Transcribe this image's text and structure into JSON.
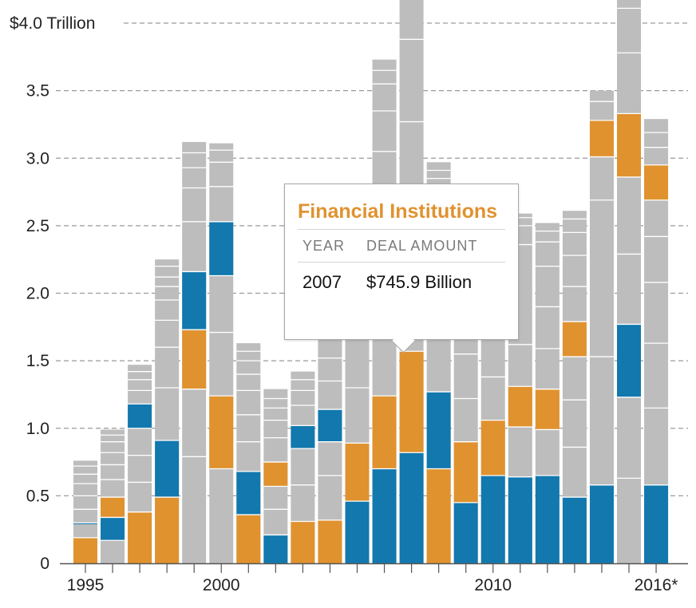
{
  "chart_data": {
    "type": "bar",
    "stacked": true,
    "y_axis": {
      "min": 0,
      "max": 4.0,
      "ticks": [
        {
          "value": 0,
          "label": "0"
        },
        {
          "value": 0.5,
          "label": "0.5"
        },
        {
          "value": 1.0,
          "label": "1.0"
        },
        {
          "value": 1.5,
          "label": "1.5"
        },
        {
          "value": 2.0,
          "label": "2.0"
        },
        {
          "value": 2.5,
          "label": "2.5"
        },
        {
          "value": 3.0,
          "label": "3.0"
        },
        {
          "value": 3.5,
          "label": "3.5"
        },
        {
          "value": 4.0,
          "label": "$4.0 Trillion"
        }
      ],
      "grid": true,
      "grid_style": "dashed"
    },
    "x_labels": [
      {
        "year": 1995,
        "label": "1995"
      },
      {
        "year": 2000,
        "label": "2000"
      },
      {
        "year": 2010,
        "label": "2010"
      },
      {
        "year": 2016,
        "label": "2016*"
      }
    ],
    "highlight_colors": {
      "blue": "#1278ae",
      "orange": "#e0922f"
    },
    "base_color": "#bdbdbd",
    "years": [
      {
        "year": 1995,
        "total": 0.76,
        "highlights": [
          {
            "from": 0.0,
            "to": 0.19,
            "color": "orange"
          },
          {
            "from": 0.29,
            "to": 0.3,
            "color": "blue"
          }
        ],
        "dividers": [
          0.19,
          0.3,
          0.4,
          0.5,
          0.59,
          0.66,
          0.72
        ]
      },
      {
        "year": 1996,
        "total": 0.99,
        "highlights": [
          {
            "from": 0.17,
            "to": 0.34,
            "color": "blue"
          },
          {
            "from": 0.34,
            "to": 0.49,
            "color": "orange"
          }
        ],
        "dividers": [
          0.17,
          0.34,
          0.49,
          0.62,
          0.73,
          0.82,
          0.9,
          0.95
        ]
      },
      {
        "year": 1997,
        "total": 1.47,
        "highlights": [
          {
            "from": 0.0,
            "to": 0.38,
            "color": "orange"
          },
          {
            "from": 1.0,
            "to": 1.18,
            "color": "blue"
          }
        ],
        "dividers": [
          0.38,
          0.6,
          0.8,
          1.0,
          1.18,
          1.28,
          1.36,
          1.42
        ]
      },
      {
        "year": 1998,
        "total": 2.25,
        "highlights": [
          {
            "from": 0.0,
            "to": 0.49,
            "color": "orange"
          },
          {
            "from": 0.49,
            "to": 0.91,
            "color": "blue"
          }
        ],
        "dividers": [
          0.49,
          0.91,
          1.3,
          1.6,
          1.8,
          1.95,
          2.05,
          2.12,
          2.2
        ]
      },
      {
        "year": 1999,
        "total": 3.12,
        "highlights": [
          {
            "from": 1.29,
            "to": 1.73,
            "color": "orange"
          },
          {
            "from": 1.73,
            "to": 2.16,
            "color": "blue"
          }
        ],
        "dividers": [
          0.79,
          1.29,
          1.73,
          2.16,
          2.53,
          2.78,
          2.93,
          3.04
        ]
      },
      {
        "year": 2000,
        "total": 3.11,
        "highlights": [
          {
            "from": 0.7,
            "to": 1.24,
            "color": "orange"
          },
          {
            "from": 2.13,
            "to": 2.53,
            "color": "blue"
          }
        ],
        "dividers": [
          0.7,
          1.24,
          1.71,
          2.13,
          2.53,
          2.79,
          2.97,
          3.06
        ]
      },
      {
        "year": 2001,
        "total": 1.63,
        "highlights": [
          {
            "from": 0.0,
            "to": 0.36,
            "color": "orange"
          },
          {
            "from": 0.36,
            "to": 0.68,
            "color": "blue"
          }
        ],
        "dividers": [
          0.36,
          0.68,
          0.9,
          1.1,
          1.28,
          1.4,
          1.5,
          1.57
        ]
      },
      {
        "year": 2002,
        "total": 1.29,
        "highlights": [
          {
            "from": 0.0,
            "to": 0.21,
            "color": "blue"
          },
          {
            "from": 0.57,
            "to": 0.75,
            "color": "orange"
          }
        ],
        "dividers": [
          0.21,
          0.4,
          0.57,
          0.75,
          0.93,
          1.06,
          1.15,
          1.22
        ]
      },
      {
        "year": 2003,
        "total": 1.42,
        "highlights": [
          {
            "from": 0.0,
            "to": 0.31,
            "color": "orange"
          },
          {
            "from": 0.85,
            "to": 1.02,
            "color": "blue"
          }
        ],
        "dividers": [
          0.31,
          0.58,
          0.85,
          1.02,
          1.17,
          1.28,
          1.36
        ]
      },
      {
        "year": 2004,
        "total": 1.75,
        "highlights": [
          {
            "from": 0.0,
            "to": 0.32,
            "color": "orange"
          },
          {
            "from": 0.9,
            "to": 1.14,
            "color": "blue"
          }
        ],
        "dividers": [
          0.32,
          0.65,
          0.9,
          1.14,
          1.35,
          1.52
        ]
      },
      {
        "year": 2005,
        "total": 2.75,
        "highlights": [
          {
            "from": 0.0,
            "to": 0.46,
            "color": "blue"
          },
          {
            "from": 0.46,
            "to": 0.89,
            "color": "orange"
          }
        ],
        "dividers": [
          0.46,
          0.89,
          1.3
        ]
      },
      {
        "year": 2006,
        "total": 3.73,
        "highlights": [
          {
            "from": 0.0,
            "to": 0.7,
            "color": "blue"
          },
          {
            "from": 0.7,
            "to": 1.24,
            "color": "orange"
          }
        ],
        "dividers": [
          0.7,
          1.24,
          3.05,
          3.35,
          3.55,
          3.65
        ]
      },
      {
        "year": 2007,
        "total": 4.2,
        "highlights": [
          {
            "from": 0.0,
            "to": 0.82,
            "color": "blue"
          },
          {
            "from": 0.82,
            "to": 1.57,
            "color": "orange"
          }
        ],
        "dividers": [
          0.82,
          1.57,
          3.27,
          3.88
        ]
      },
      {
        "year": 2008,
        "total": 2.97,
        "highlights": [
          {
            "from": 0.0,
            "to": 0.7,
            "color": "orange"
          },
          {
            "from": 0.7,
            "to": 1.27,
            "color": "blue"
          }
        ],
        "dividers": [
          0.7,
          1.27,
          2.85,
          2.91
        ]
      },
      {
        "year": 2009,
        "total": 1.72,
        "highlights": [
          {
            "from": 0.0,
            "to": 0.45,
            "color": "blue"
          },
          {
            "from": 0.45,
            "to": 0.9,
            "color": "orange"
          }
        ],
        "dividers": [
          0.45,
          0.9,
          1.22,
          1.55
        ]
      },
      {
        "year": 2010,
        "total": 2.69,
        "highlights": [
          {
            "from": 0.0,
            "to": 0.65,
            "color": "blue"
          },
          {
            "from": 0.65,
            "to": 1.06,
            "color": "orange"
          }
        ],
        "dividers": [
          0.65,
          1.06,
          1.38
        ]
      },
      {
        "year": 2011,
        "total": 2.59,
        "highlights": [
          {
            "from": 0.0,
            "to": 0.64,
            "color": "blue"
          },
          {
            "from": 1.01,
            "to": 1.31,
            "color": "orange"
          }
        ],
        "dividers": [
          0.64,
          1.01,
          1.31,
          1.62,
          2.36,
          2.5,
          2.56
        ]
      },
      {
        "year": 2012,
        "total": 2.52,
        "highlights": [
          {
            "from": 0.0,
            "to": 0.65,
            "color": "blue"
          },
          {
            "from": 0.99,
            "to": 1.29,
            "color": "orange"
          }
        ],
        "dividers": [
          0.65,
          0.99,
          1.29,
          1.59,
          1.9,
          2.2,
          2.38,
          2.46
        ]
      },
      {
        "year": 2013,
        "total": 2.61,
        "highlights": [
          {
            "from": 0.0,
            "to": 0.49,
            "color": "blue"
          },
          {
            "from": 1.53,
            "to": 1.79,
            "color": "orange"
          }
        ],
        "dividers": [
          0.49,
          0.86,
          1.21,
          1.53,
          1.79,
          2.05,
          2.28,
          2.45,
          2.55
        ]
      },
      {
        "year": 2014,
        "total": 3.5,
        "highlights": [
          {
            "from": 0.0,
            "to": 0.58,
            "color": "blue"
          },
          {
            "from": 3.01,
            "to": 3.28,
            "color": "orange"
          }
        ],
        "dividers": [
          0.58,
          1.53,
          2.69,
          3.01,
          3.28,
          3.42
        ]
      },
      {
        "year": 2015,
        "total": 4.3,
        "highlights": [
          {
            "from": 1.23,
            "to": 1.77,
            "color": "blue"
          },
          {
            "from": 2.86,
            "to": 3.33,
            "color": "orange"
          }
        ],
        "dividers": [
          0.63,
          1.23,
          1.77,
          2.29,
          2.86,
          3.33,
          3.78,
          4.11
        ]
      },
      {
        "year": 2016,
        "total": 3.29,
        "highlights": [
          {
            "from": 0.0,
            "to": 0.58,
            "color": "blue"
          },
          {
            "from": 2.69,
            "to": 2.95,
            "color": "orange"
          }
        ],
        "dividers": [
          0.58,
          1.15,
          1.63,
          2.08,
          2.42,
          2.69,
          2.95,
          3.08,
          3.19
        ]
      }
    ]
  },
  "tooltip": {
    "title": "Financial Institutions",
    "headers": [
      "YEAR",
      "DEAL AMOUNT"
    ],
    "year": "2007",
    "amount": "$745.9 Billion"
  }
}
